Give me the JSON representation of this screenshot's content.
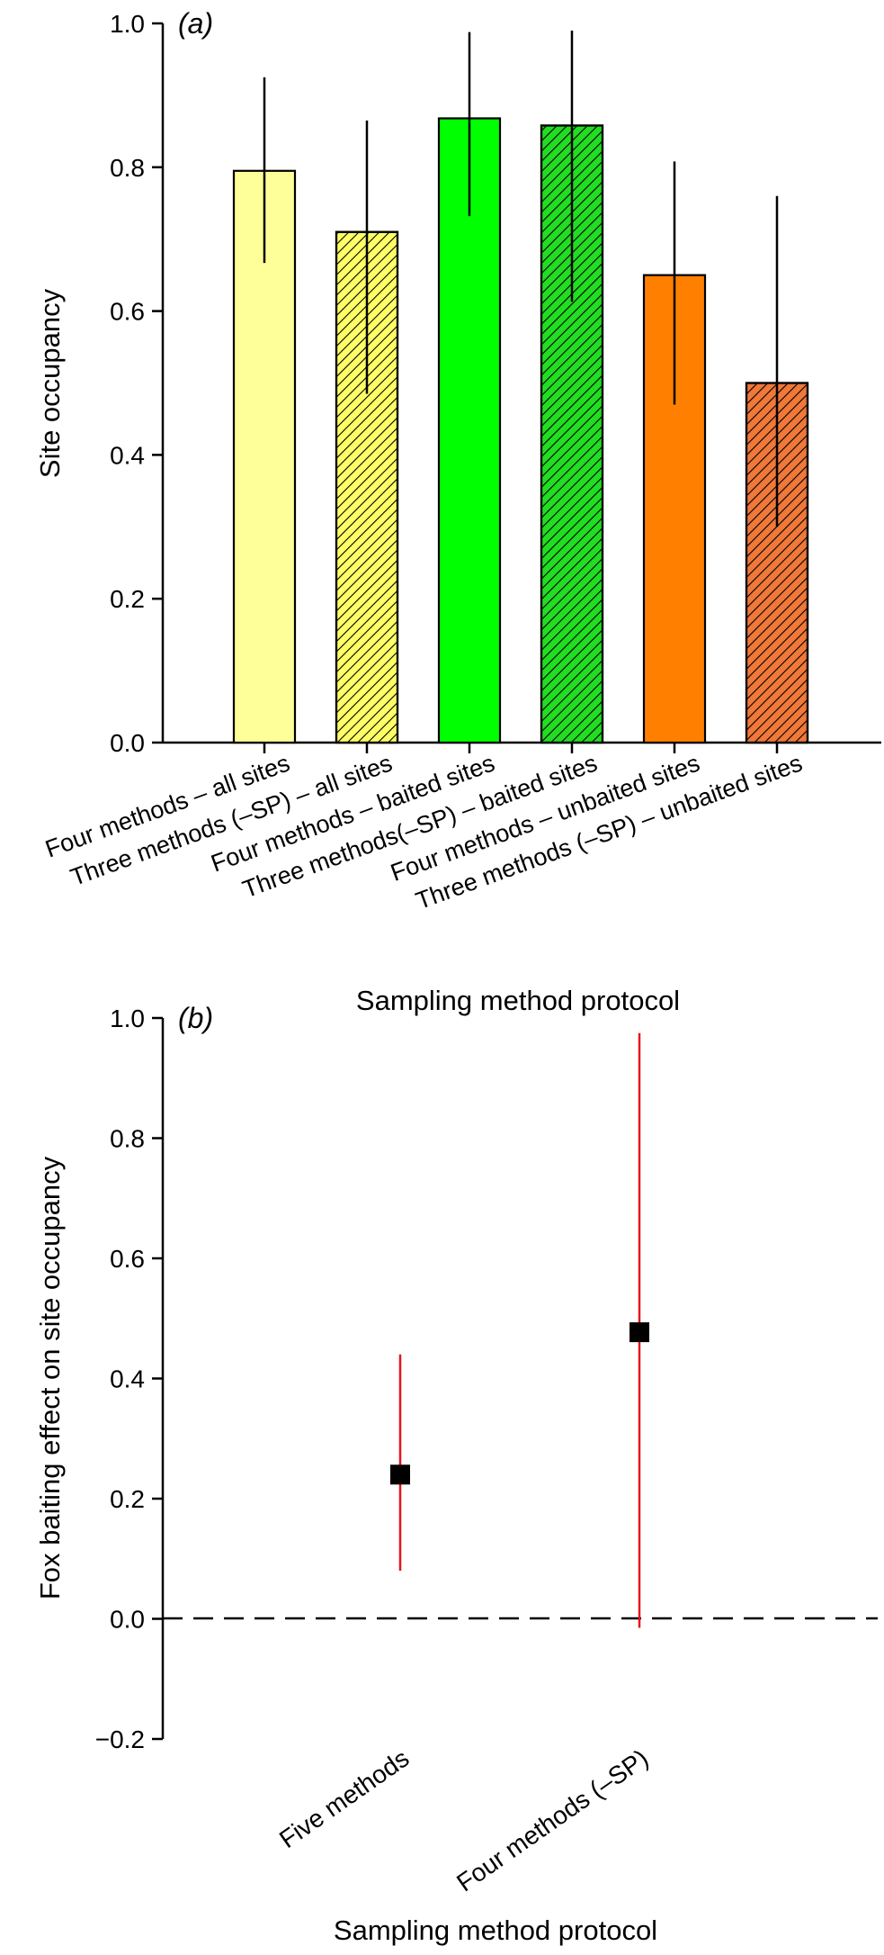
{
  "chart_data": [
    {
      "panel": "(a)",
      "type": "bar",
      "xlabel": "Sampling method protocol",
      "ylabel": "Site occupancy",
      "ylim": [
        0.0,
        1.0
      ],
      "yticks": [
        "0.0",
        "0.2",
        "0.4",
        "0.6",
        "0.8",
        "1.0"
      ],
      "grid": false,
      "categories": [
        "Four methods – all sites",
        "Three methods (–SP) – all sites",
        "Four methods – baited sites",
        "Three methods(–SP) – baited sites",
        "Four methods – unbaited sites",
        "Three methods (–SP) – unbaited sites"
      ],
      "values": [
        0.795,
        0.71,
        0.868,
        0.858,
        0.65,
        0.5
      ],
      "error_low": [
        0.667,
        0.485,
        0.732,
        0.613,
        0.47,
        0.3
      ],
      "error_high": [
        0.925,
        0.865,
        0.988,
        0.99,
        0.808,
        0.76
      ],
      "colors": [
        "#FFFF99",
        "#FFFF66",
        "#00FF00",
        "#22DD22",
        "#FF8000",
        "#F07838"
      ],
      "hatched": [
        false,
        true,
        false,
        true,
        false,
        true
      ]
    },
    {
      "panel": "(b)",
      "type": "scatter",
      "xlabel": "Sampling method protocol",
      "ylabel": "Fox baiting effect on site occupancy",
      "ylim": [
        -0.2,
        1.0
      ],
      "yticks": [
        "−0.2",
        "0.0",
        "0.2",
        "0.4",
        "0.6",
        "0.8",
        "1.0"
      ],
      "grid": false,
      "reference_line": 0.0,
      "categories": [
        "Five methods",
        "Four methods (–SP)"
      ],
      "values": [
        0.24,
        0.477
      ],
      "error_low": [
        0.08,
        -0.015
      ],
      "error_high": [
        0.44,
        0.975
      ],
      "marker_color": "#000000",
      "errorbar_color": "#E8141E"
    }
  ]
}
